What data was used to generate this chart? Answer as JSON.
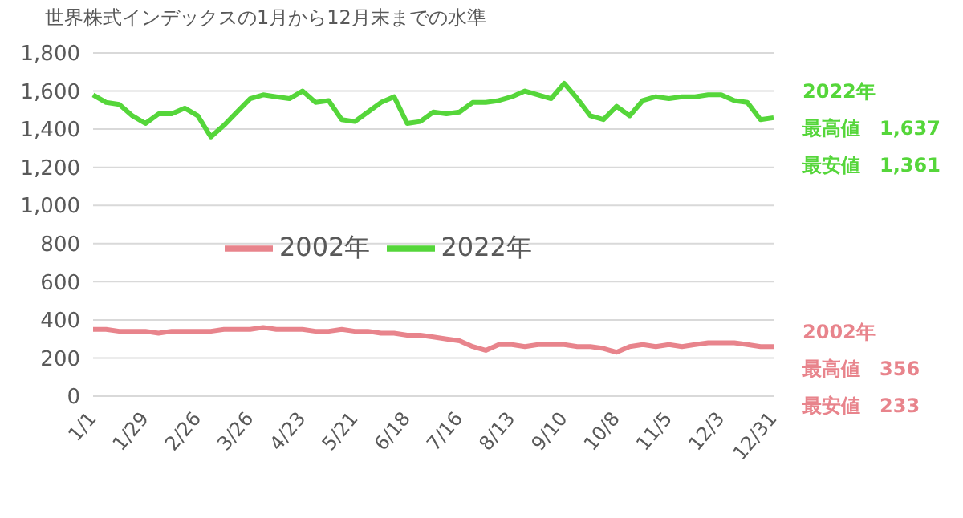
{
  "chart_data": {
    "type": "line",
    "title": "世界株式インデックスの1月から12月末までの水準",
    "categories": [
      "1/1",
      null,
      null,
      null,
      "1/29",
      null,
      null,
      null,
      "2/26",
      null,
      null,
      null,
      "3/26",
      null,
      null,
      null,
      "4/23",
      null,
      null,
      null,
      "5/21",
      null,
      null,
      null,
      "6/18",
      null,
      null,
      null,
      "7/16",
      null,
      null,
      null,
      "8/13",
      null,
      null,
      null,
      "9/10",
      null,
      null,
      null,
      "10/8",
      null,
      null,
      null,
      "11/5",
      null,
      null,
      null,
      "12/3",
      null,
      null,
      null,
      "12/31"
    ],
    "series": [
      {
        "name": "2002年",
        "color": "#e8848c",
        "values": [
          350,
          350,
          340,
          340,
          340,
          330,
          340,
          340,
          340,
          340,
          350,
          350,
          350,
          360,
          350,
          350,
          350,
          340,
          340,
          350,
          340,
          340,
          330,
          330,
          320,
          320,
          310,
          300,
          290,
          260,
          240,
          270,
          270,
          260,
          270,
          270,
          270,
          260,
          260,
          250,
          230,
          260,
          270,
          260,
          270,
          260,
          270,
          280,
          280,
          280,
          270,
          260,
          260
        ]
      },
      {
        "name": "2022年",
        "color": "#55d63a",
        "values": [
          1580,
          1540,
          1530,
          1470,
          1430,
          1480,
          1480,
          1510,
          1470,
          1360,
          1420,
          1490,
          1560,
          1580,
          1570,
          1560,
          1600,
          1540,
          1550,
          1450,
          1440,
          1490,
          1540,
          1570,
          1430,
          1440,
          1490,
          1480,
          1490,
          1540,
          1540,
          1550,
          1570,
          1600,
          1580,
          1560,
          1640,
          1560,
          1470,
          1450,
          1520,
          1470,
          1550,
          1570,
          1560,
          1570,
          1570,
          1580,
          1580,
          1550,
          1540,
          1450,
          1460
        ]
      }
    ],
    "ylim": [
      0,
      1800
    ],
    "yticks": [
      0,
      200,
      400,
      600,
      800,
      {
        "value": 1000,
        "label": "1,000"
      },
      {
        "value": 1200,
        "label": "1,200"
      },
      {
        "value": 1400,
        "label": "1,400"
      },
      {
        "value": 1600,
        "label": "1,600"
      },
      {
        "value": 1800,
        "label": "1,800"
      }
    ],
    "grid": "y",
    "legend": "center",
    "marker": "none",
    "line_style": "solid",
    "annotations": [
      "2022年",
      "最高値　1,637",
      "最安値　1,361",
      "2002年",
      "最高値　356",
      "最安値　233"
    ]
  }
}
